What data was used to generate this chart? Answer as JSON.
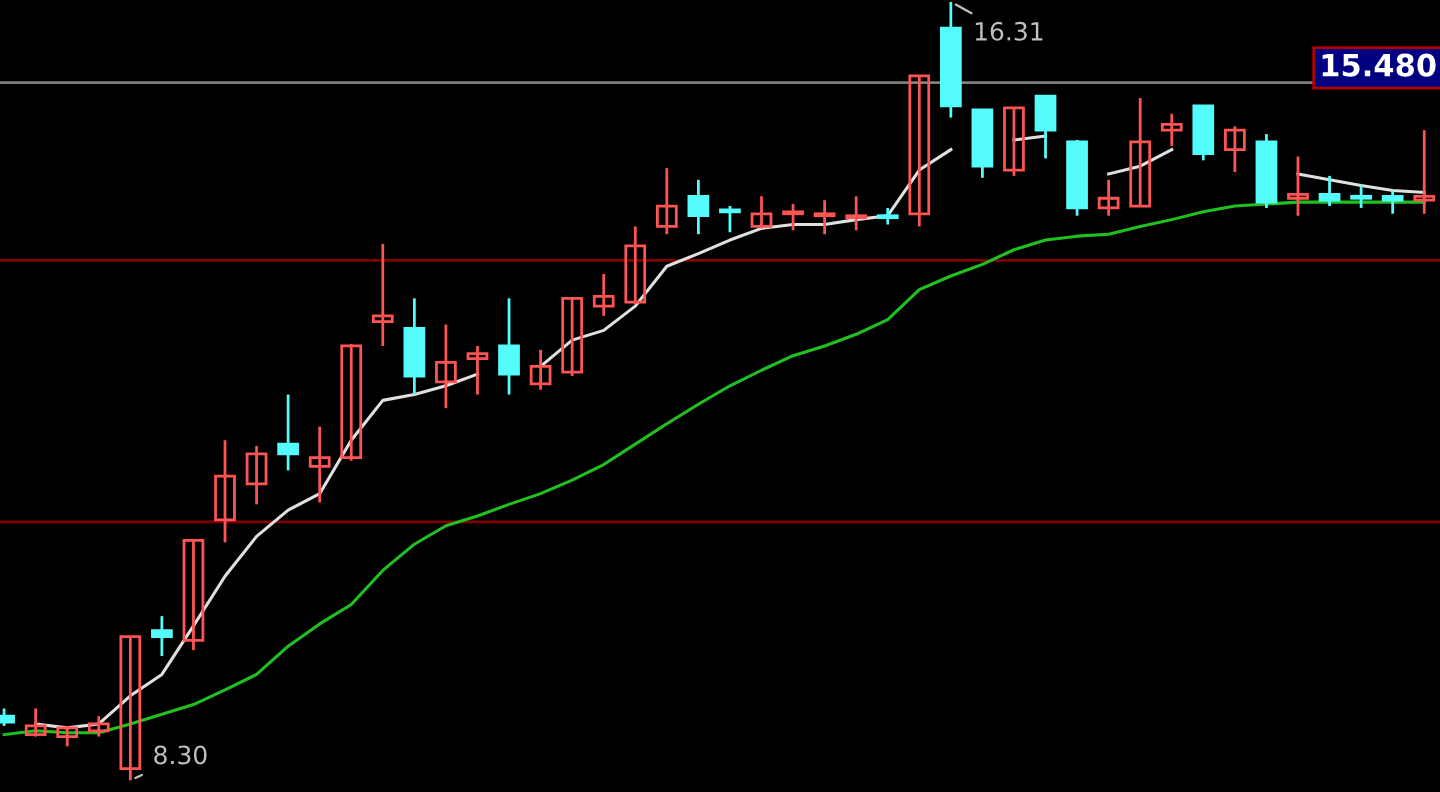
{
  "chart_data": {
    "type": "candlestick",
    "categories": [
      null,
      null,
      null,
      null,
      null,
      null,
      null,
      null,
      null,
      null,
      null,
      null,
      null,
      null,
      null,
      null,
      null,
      null,
      null,
      null,
      null,
      null,
      null,
      null,
      null,
      null,
      null,
      null,
      null,
      null,
      null,
      null,
      null,
      null,
      null,
      null,
      null,
      null,
      null,
      null,
      null,
      null,
      null,
      null,
      null,
      null
    ],
    "ohlc": [
      [
        8.96,
        9.04,
        8.86,
        8.9
      ],
      [
        8.77,
        9.04,
        8.75,
        8.86
      ],
      [
        8.75,
        8.86,
        8.65,
        8.84
      ],
      [
        8.81,
        8.96,
        8.75,
        8.88
      ],
      [
        8.42,
        9.78,
        8.3,
        9.78
      ],
      [
        9.84,
        9.99,
        9.58,
        9.78
      ],
      [
        9.74,
        10.77,
        9.64,
        10.77
      ],
      [
        10.98,
        11.8,
        10.75,
        11.43
      ],
      [
        11.35,
        11.74,
        11.14,
        11.66
      ],
      [
        11.76,
        12.27,
        11.49,
        11.66
      ],
      [
        11.53,
        11.94,
        11.16,
        11.62
      ],
      [
        11.62,
        12.79,
        11.59,
        12.77
      ],
      [
        13.02,
        13.82,
        12.77,
        13.08
      ],
      [
        12.95,
        13.26,
        12.27,
        12.46
      ],
      [
        12.4,
        12.99,
        12.13,
        12.6
      ],
      [
        12.64,
        12.77,
        12.27,
        12.69
      ],
      [
        12.77,
        13.26,
        12.27,
        12.48
      ],
      [
        12.38,
        12.73,
        12.32,
        12.56
      ],
      [
        12.5,
        13.26,
        12.46,
        13.26
      ],
      [
        13.18,
        13.51,
        13.08,
        13.28
      ],
      [
        13.22,
        14.0,
        13.2,
        13.8
      ],
      [
        14.0,
        14.6,
        13.92,
        14.21
      ],
      [
        14.31,
        14.48,
        13.92,
        14.11
      ],
      [
        14.17,
        14.21,
        13.94,
        14.15
      ],
      [
        14.0,
        14.31,
        13.98,
        14.13
      ],
      [
        14.13,
        14.23,
        13.96,
        14.15
      ],
      [
        14.11,
        14.27,
        13.92,
        14.13
      ],
      [
        14.09,
        14.31,
        13.96,
        14.11
      ],
      [
        14.11,
        14.19,
        14.02,
        14.09
      ],
      [
        14.13,
        15.55,
        14.0,
        15.55
      ],
      [
        16.04,
        16.31,
        15.12,
        15.24
      ],
      [
        15.2,
        15.2,
        14.5,
        14.62
      ],
      [
        14.58,
        15.22,
        14.52,
        15.22
      ],
      [
        15.34,
        15.34,
        14.7,
        14.99
      ],
      [
        14.87,
        14.89,
        14.11,
        14.19
      ],
      [
        14.19,
        14.48,
        14.11,
        14.29
      ],
      [
        14.21,
        15.32,
        14.21,
        14.87
      ],
      [
        14.99,
        15.16,
        14.83,
        15.05
      ],
      [
        15.24,
        15.24,
        14.68,
        14.75
      ],
      [
        14.79,
        15.03,
        14.56,
        14.99
      ],
      [
        14.87,
        14.95,
        14.19,
        14.25
      ],
      [
        14.29,
        14.72,
        14.11,
        14.33
      ],
      [
        14.33,
        14.52,
        14.21,
        14.27
      ],
      [
        14.31,
        14.42,
        14.19,
        14.29
      ],
      [
        14.31,
        14.37,
        14.13,
        14.27
      ],
      [
        14.27,
        14.99,
        14.13,
        14.31
      ]
    ],
    "colors": [
      "#54fcfc",
      "#ff5454",
      "#ff5454",
      "#ff5454",
      "#ff5454",
      "#54fcfc",
      "#ff5454",
      "#ff5454",
      "#ff5454",
      "#54fcfc",
      "#ff5454",
      "#ff5454",
      "#ff5454",
      "#54fcfc",
      "#ff5454",
      "#ff5454",
      "#54fcfc",
      "#ff5454",
      "#ff5454",
      "#ff5454",
      "#ff5454",
      "#ff5454",
      "#54fcfc",
      "#54fcfc",
      "#ff5454",
      "#ff5454",
      "#ff5454",
      "#ff5454",
      "#54fcfc",
      "#ff5454",
      "#54fcfc",
      "#54fcfc",
      "#ff5454",
      "#54fcfc",
      "#54fcfc",
      "#ff5454",
      "#ff5454",
      "#ff5454",
      "#54fcfc",
      "#ff5454",
      "#54fcfc",
      "#ff5454",
      "#54fcfc",
      "#54fcfc",
      "#54fcfc",
      "#ff5454"
    ],
    "series": [
      {
        "type": "line",
        "color": "#e0e0e0",
        "values": [
          null,
          8.88,
          8.84,
          8.88,
          9.17,
          9.39,
          9.89,
          10.4,
          10.81,
          11.08,
          11.25,
          11.8,
          12.21,
          12.27,
          12.36,
          12.48,
          null,
          12.56,
          12.83,
          12.93,
          13.18,
          13.59,
          13.72,
          13.86,
          13.98,
          14.02,
          14.02,
          14.07,
          14.11,
          14.58,
          14.79,
          null,
          14.89,
          14.93,
          null,
          14.54,
          14.62,
          14.79,
          null,
          null,
          null,
          14.54,
          14.48,
          14.42,
          14.37,
          14.35
        ]
      },
      {
        "type": "line",
        "color": "#20c020",
        "values": [
          8.77,
          8.81,
          8.79,
          8.79,
          8.88,
          8.98,
          9.08,
          9.23,
          9.39,
          9.68,
          9.91,
          10.11,
          10.46,
          10.73,
          10.92,
          11.02,
          11.14,
          11.25,
          11.39,
          11.55,
          11.76,
          11.97,
          12.17,
          12.36,
          12.52,
          12.67,
          12.77,
          12.89,
          13.04,
          13.35,
          13.49,
          13.61,
          13.76,
          13.86,
          13.9,
          13.92,
          14.0,
          14.07,
          14.15,
          14.21,
          14.23,
          14.25,
          14.25,
          14.25,
          14.25,
          14.25
        ]
      }
    ],
    "ylim": [
      8.18,
      16.33
    ],
    "ref_lines": [
      {
        "axis": "y",
        "value": 15.48,
        "label": "15.480",
        "color": "#808080"
      },
      {
        "axis": "y",
        "value": 13.65,
        "color": "#800000"
      },
      {
        "axis": "y",
        "value": 10.96,
        "color": "#800000"
      }
    ],
    "annotations": [
      "16.31",
      "8.30"
    ]
  }
}
